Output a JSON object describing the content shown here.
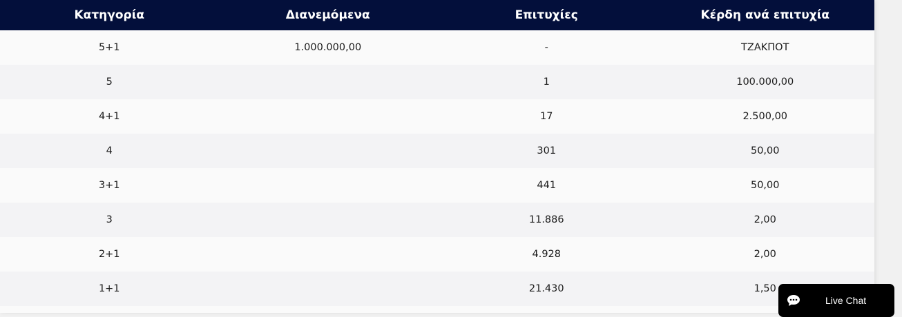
{
  "table": {
    "headers": [
      "Κατηγορία",
      "Διανεμόμενα",
      "Επιτυχίες",
      "Κέρδη ανά επιτυχία"
    ],
    "rows": [
      [
        "5+1",
        "1.000.000,00",
        "-",
        "ΤΖΑΚΠΟΤ"
      ],
      [
        "5",
        "",
        "1",
        "100.000,00"
      ],
      [
        "4+1",
        "",
        "17",
        "2.500,00"
      ],
      [
        "4",
        "",
        "301",
        "50,00"
      ],
      [
        "3+1",
        "",
        "441",
        "50,00"
      ],
      [
        "3",
        "",
        "11.886",
        "2,00"
      ],
      [
        "2+1",
        "",
        "4.928",
        "2,00"
      ],
      [
        "1+1",
        "",
        "21.430",
        "1,50"
      ]
    ]
  },
  "live_chat": {
    "label": "Live Chat",
    "icon": "chat-bubble-icon"
  },
  "colors": {
    "header_bg": "#030f3b",
    "row_odd": "#fafafa",
    "row_even": "#f3f3f5"
  }
}
